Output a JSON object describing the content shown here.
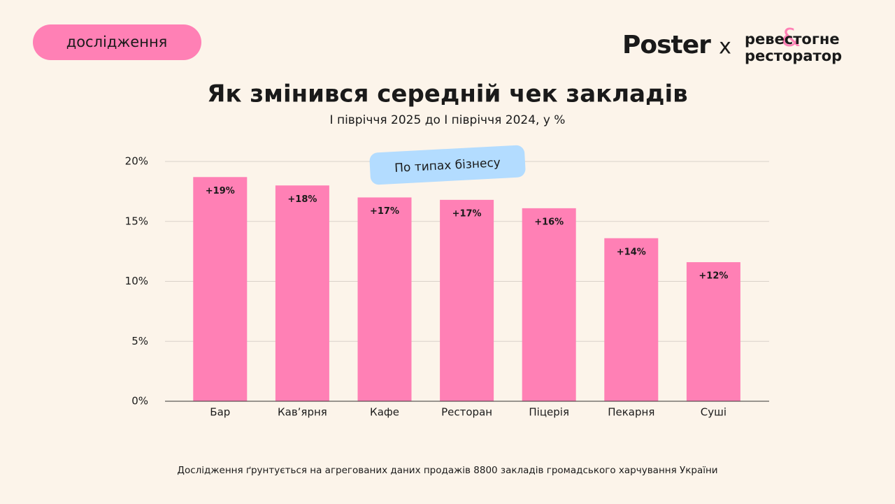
{
  "header": {
    "badge": "дослідження",
    "brand": "Poster",
    "separator": "x",
    "partner_line1": "ревестогне",
    "partner_line2": "ресторатор",
    "partner_mark": "&"
  },
  "chart_data": {
    "type": "bar",
    "title": "Як змінився середній чек закладів",
    "subtitle": "І півріччя 2025 до І півріччя 2024, у %",
    "annotation": "По типах бізнесу",
    "footnote": "Дослідження ґрунтується на агрегованих даних продажів 8800 закладів громадського харчування України",
    "categories": [
      "Бар",
      "Кав’ярня",
      "Кафе",
      "Ресторан",
      "Піцерія",
      "Пекарня",
      "Суші"
    ],
    "values": [
      18.7,
      18.0,
      17.0,
      16.8,
      16.1,
      13.6,
      11.6
    ],
    "value_labels": [
      "+19%",
      "+18%",
      "+17%",
      "+17%",
      "+16%",
      "+14%",
      "+12%"
    ],
    "color": "#ff80b5",
    "ylim": [
      0,
      20
    ],
    "yticks": [
      {
        "value": 0,
        "label": "0%"
      },
      {
        "value": 5,
        "label": "5%"
      },
      {
        "value": 10,
        "label": "10%"
      },
      {
        "value": 15,
        "label": "15%"
      },
      {
        "value": 20,
        "label": "20%"
      }
    ],
    "grid": true
  }
}
